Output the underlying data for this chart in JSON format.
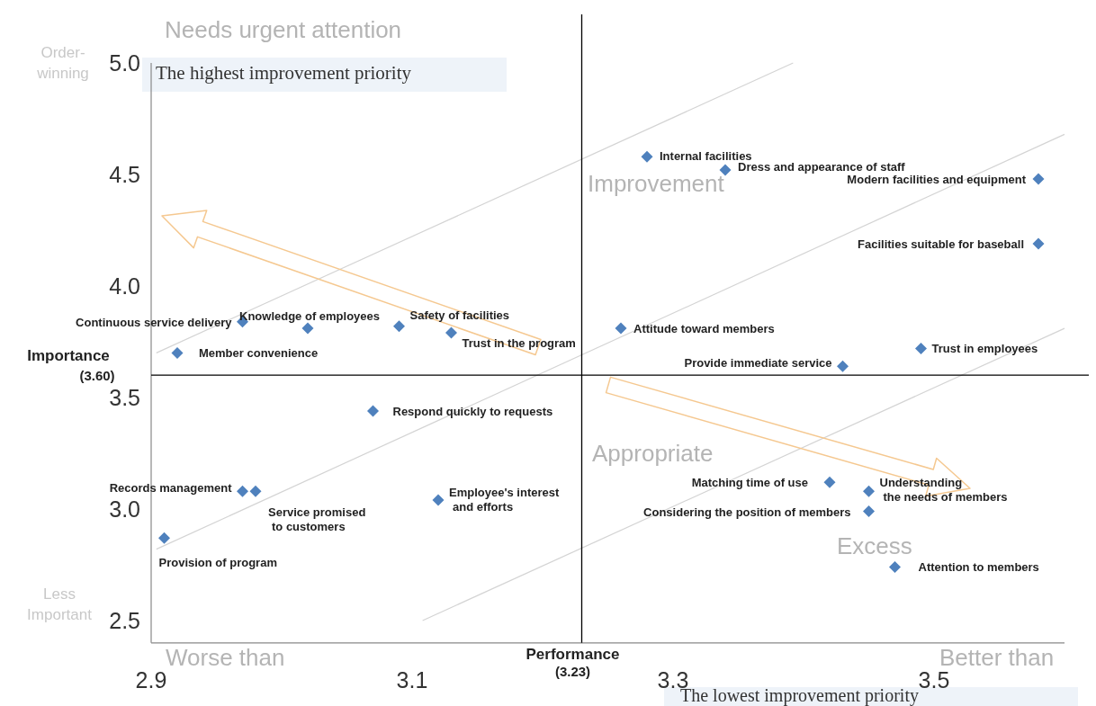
{
  "chart_data": {
    "type": "scatter",
    "xlabel": "Performance",
    "ylabel": "Importance",
    "xlim": [
      2.9,
      3.6
    ],
    "ylim": [
      2.4,
      5.0
    ],
    "xticks": [
      2.9,
      3.1,
      3.3,
      3.5
    ],
    "yticks": [
      {
        "value": 2.5,
        "label": "2.5"
      },
      {
        "value": 3,
        "label": "3.0"
      },
      {
        "value": 3.5,
        "label": "3.5"
      },
      {
        "value": 4,
        "label": "4.0"
      },
      {
        "value": 4.5,
        "label": "4.5"
      },
      {
        "value": 5,
        "label": "5.0"
      }
    ],
    "marker": "diamond",
    "series": [
      {
        "type": "line",
        "marker": "none",
        "color": "#d4d4d4",
        "x": [
          2.904,
          3.392
        ],
        "values": [
          3.7,
          5.0
        ]
      },
      {
        "type": "line",
        "marker": "none",
        "color": "#d4d4d4",
        "x": [
          2.904,
          3.6
        ],
        "values": [
          2.82,
          4.68
        ]
      },
      {
        "type": "line",
        "marker": "none",
        "color": "#d4d4d4",
        "x": [
          3.108,
          3.6
        ],
        "values": [
          2.5,
          3.81
        ]
      },
      {
        "type": "scatter",
        "color": "#4f81bd",
        "x": [
          2.92,
          2.97,
          3.02,
          3.09,
          3.13,
          3.26,
          3.28,
          3.34,
          3.58,
          3.58,
          3.49,
          3.43,
          3.07,
          2.97,
          2.98,
          3.12,
          2.91,
          3.42,
          3.45,
          3.45,
          3.47
        ],
        "values": [
          3.7,
          3.84,
          3.81,
          3.82,
          3.79,
          3.81,
          4.58,
          4.52,
          4.48,
          4.19,
          3.72,
          3.64,
          3.44,
          3.08,
          3.08,
          3.04,
          2.87,
          3.12,
          3.08,
          2.99,
          2.74
        ]
      }
    ],
    "ref_lines": [
      {
        "axis": "y",
        "value": 3.6,
        "label": "(3.60)",
        "color": "#000000"
      },
      {
        "axis": "x",
        "value": 3.23,
        "label": "(3.23)",
        "color": "#000000"
      }
    ],
    "annotations": [
      "Needs urgent attention",
      "Order-winning",
      "The highest improvement priority",
      "Improvement",
      "Appropriate",
      "Excess",
      "Less Important",
      "Worse than",
      "Better than",
      "The lowest improvement priority",
      {
        "text": "Member convenience",
        "x": 2.92,
        "y": 3.7
      },
      {
        "text": "Continuous service delivery",
        "x": 2.97,
        "y": 3.84
      },
      {
        "text": "Knowledge of employees",
        "x": 3.02,
        "y": 3.81
      },
      {
        "text": "Safety of facilities",
        "x": 3.09,
        "y": 3.82
      },
      {
        "text": "Trust in the program",
        "x": 3.13,
        "y": 3.79
      },
      {
        "text": "Attitude toward members",
        "x": 3.26,
        "y": 3.81
      },
      {
        "text": "Internal facilities",
        "x": 3.28,
        "y": 4.58
      },
      {
        "text": "Dress and appearance of staff",
        "x": 3.34,
        "y": 4.52
      },
      {
        "text": "Modern facilities and equipment",
        "x": 3.58,
        "y": 4.48
      },
      {
        "text": "Facilities suitable for baseball",
        "x": 3.58,
        "y": 4.19
      },
      {
        "text": "Trust in employees",
        "x": 3.49,
        "y": 3.72
      },
      {
        "text": "Provide immediate service",
        "x": 3.43,
        "y": 3.64
      },
      {
        "text": "Respond quickly to requests",
        "x": 3.07,
        "y": 3.44
      },
      {
        "text": "Records management",
        "x": 2.97,
        "y": 3.08
      },
      {
        "text": "Service promised to customers",
        "x": 2.98,
        "y": 3.08
      },
      {
        "text": "Employee's interest and efforts",
        "x": 3.12,
        "y": 3.04
      },
      {
        "text": "Provision of program",
        "x": 2.91,
        "y": 2.87
      },
      {
        "text": "Matching time of use",
        "x": 3.42,
        "y": 3.12
      },
      {
        "text": "Understanding the needs of members",
        "x": 3.45,
        "y": 3.08
      },
      {
        "text": "Considering the position of members",
        "x": 3.45,
        "y": 2.99
      },
      {
        "text": "Attention to members",
        "x": 3.47,
        "y": 2.74
      }
    ]
  }
}
